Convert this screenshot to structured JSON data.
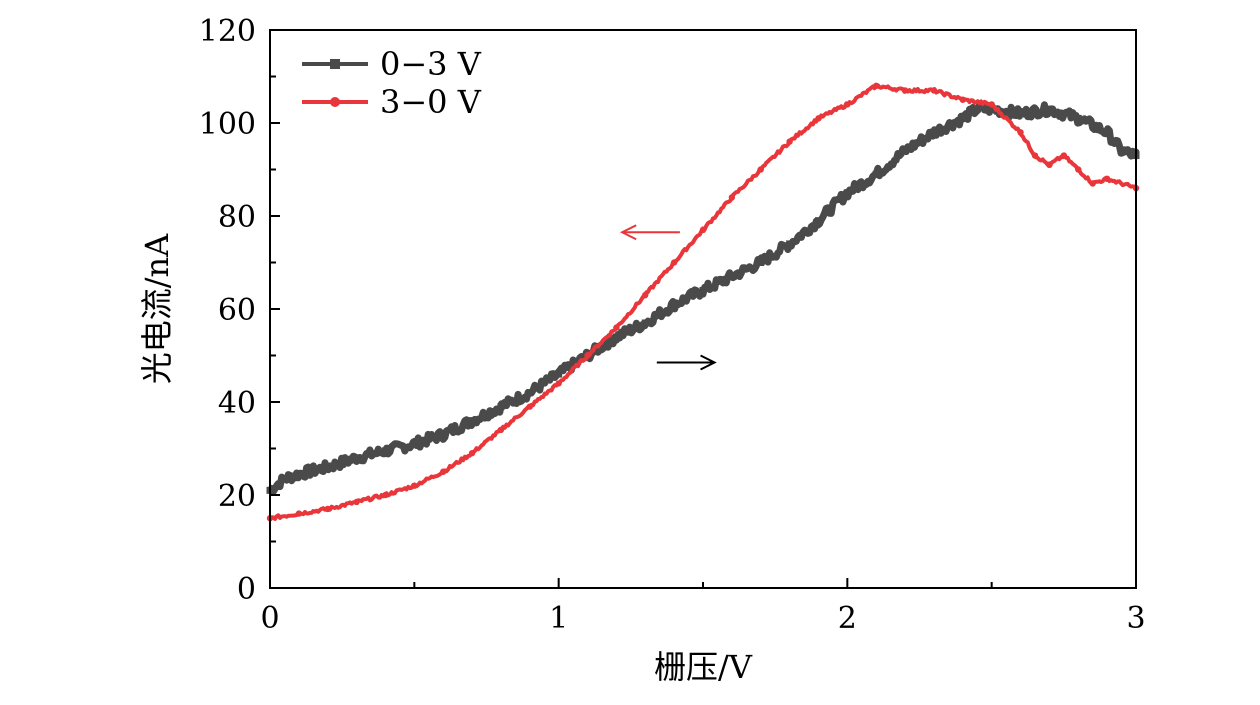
{
  "chart_data": {
    "type": "line",
    "title": "",
    "xlabel": "栅压/V",
    "ylabel": "光电流/nA",
    "xlim": [
      0,
      3
    ],
    "ylim": [
      0,
      120
    ],
    "xticks": [
      0,
      1,
      2,
      3
    ],
    "yticks": [
      0,
      20,
      40,
      60,
      80,
      100,
      120
    ],
    "grid": false,
    "legend_position": "top-left",
    "series": [
      {
        "name": "0−3 V",
        "color": "#4a4a4a",
        "marker": "square",
        "x": [
          0,
          0.05,
          0.1,
          0.2,
          0.3,
          0.4,
          0.5,
          0.6,
          0.7,
          0.8,
          0.9,
          1.0,
          1.1,
          1.2,
          1.3,
          1.4,
          1.5,
          1.6,
          1.7,
          1.8,
          1.9,
          2.0,
          2.1,
          2.2,
          2.3,
          2.4,
          2.45,
          2.5,
          2.6,
          2.7,
          2.8,
          2.9,
          2.95,
          3.0
        ],
        "y": [
          21,
          23.5,
          24.5,
          26,
          28,
          29.5,
          31,
          33,
          36,
          39,
          42,
          46,
          50,
          54,
          57,
          61,
          64,
          67,
          70,
          74,
          79,
          85,
          89,
          94,
          98,
          101,
          103,
          103,
          102,
          103,
          101,
          98,
          94,
          93
        ]
      },
      {
        "name": "3−0 V",
        "color": "#e8363a",
        "marker": "circle",
        "x": [
          0,
          0.1,
          0.2,
          0.3,
          0.4,
          0.5,
          0.6,
          0.7,
          0.8,
          0.9,
          1.0,
          1.1,
          1.2,
          1.3,
          1.4,
          1.5,
          1.6,
          1.7,
          1.8,
          1.9,
          2.0,
          2.1,
          2.2,
          2.3,
          2.4,
          2.5,
          2.6,
          2.65,
          2.7,
          2.75,
          2.8,
          2.85,
          2.9,
          3.0
        ],
        "y": [
          15,
          16,
          17,
          18.5,
          20,
          22,
          25,
          29,
          34,
          39,
          44,
          50,
          56,
          63,
          70,
          77,
          84,
          90,
          96,
          101,
          104,
          108,
          107,
          107,
          105,
          104,
          98,
          93,
          91,
          93,
          90,
          87,
          88,
          86
        ]
      }
    ],
    "annotations": [
      {
        "type": "arrow",
        "direction": "left",
        "color": "#e8363a",
        "x_from": 1.42,
        "x_to": 1.22,
        "y": 76.5
      },
      {
        "type": "arrow",
        "direction": "right",
        "color": "#000000",
        "x_from": 1.34,
        "x_to": 1.54,
        "y": 48.5
      }
    ]
  }
}
